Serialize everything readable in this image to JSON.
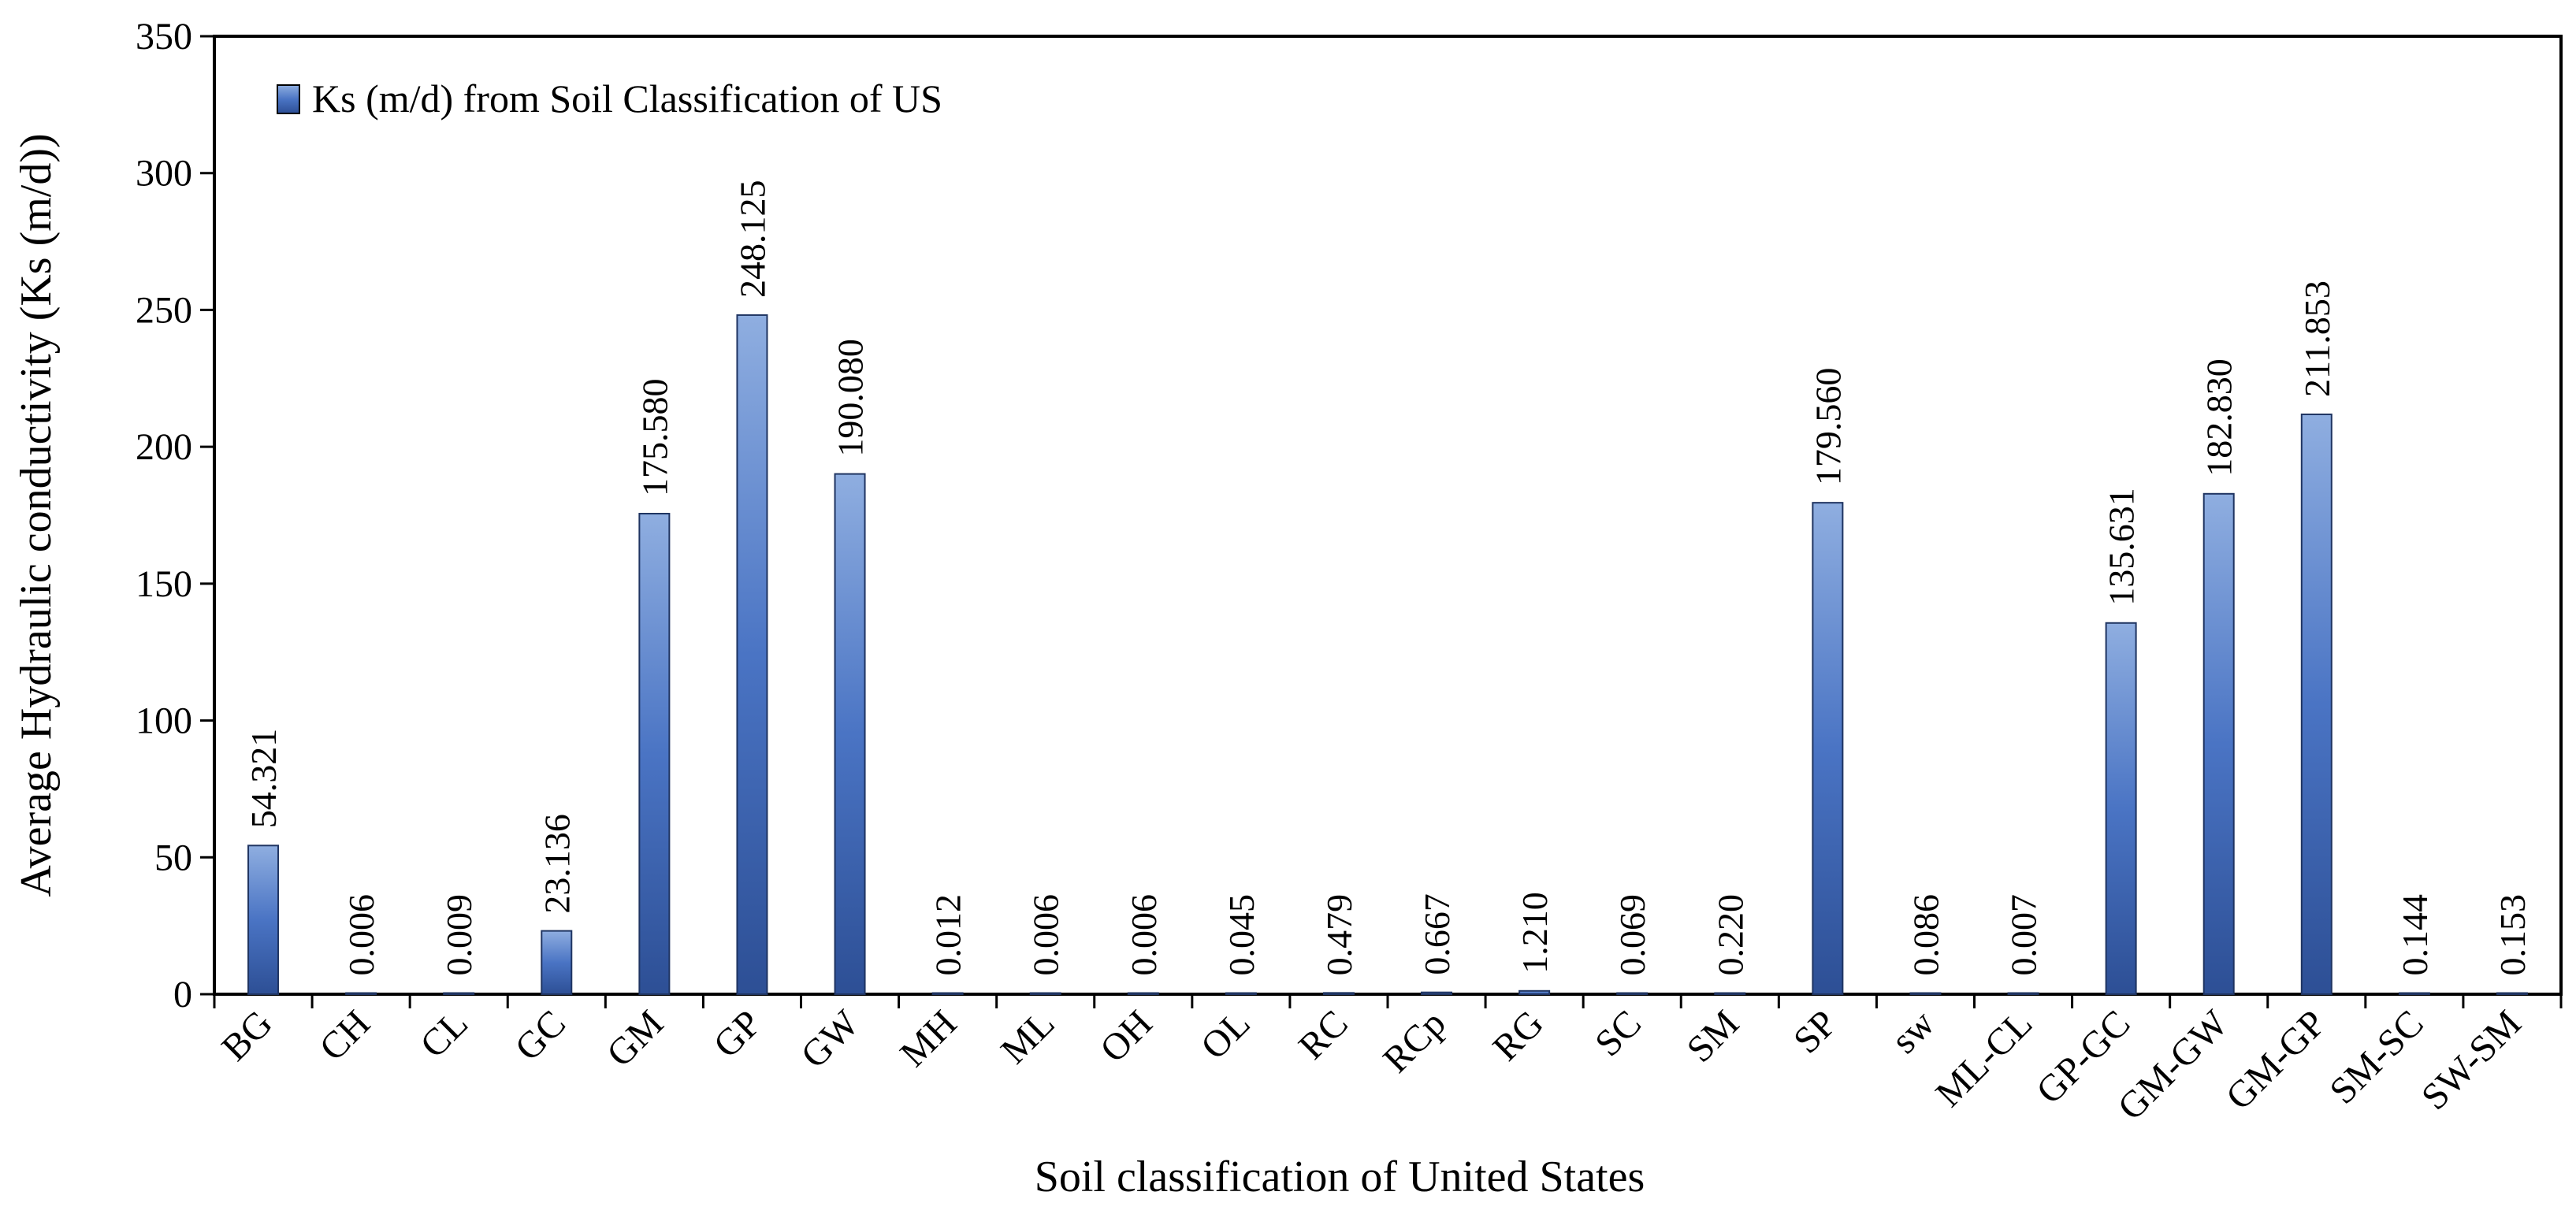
{
  "chart_data": {
    "type": "bar",
    "title": "",
    "xlabel": "Soil classification of United States",
    "ylabel": "Average Hydraulic conductivity (Ks (m/d))",
    "ylim": [
      0,
      350
    ],
    "yticks": [
      0,
      50,
      100,
      150,
      200,
      250,
      300,
      350
    ],
    "grid": false,
    "legend_position": "top-left",
    "categories": [
      "BG",
      "CH",
      "CL",
      "GC",
      "GM",
      "GP",
      "GW",
      "MH",
      "ML",
      "OH",
      "OL",
      "RC",
      "RCp",
      "RG",
      "SC",
      "SM",
      "SP",
      "sw",
      "ML-CL",
      "GP-GC",
      "GM-GW",
      "GM-GP",
      "SM-SC",
      "SW-SM"
    ],
    "series": [
      {
        "name": "Ks (m/d) from Soil Classification of US",
        "color": "#3b64b4",
        "values": [
          54.321,
          0.006,
          0.009,
          23.136,
          175.58,
          248.125,
          190.08,
          0.012,
          0.006,
          0.006,
          0.045,
          0.479,
          0.667,
          1.21,
          0.069,
          0.22,
          179.56,
          0.086,
          0.007,
          135.631,
          182.83,
          211.853,
          0.144,
          0.153
        ],
        "data_labels": [
          "54.321",
          "0.006",
          "0.009",
          "23.136",
          "175.580",
          "248.125",
          "190.080",
          "0.012",
          "0.006",
          "0.006",
          "0.045",
          "0.479",
          "0.667",
          "1.210",
          "0.069",
          "0.220",
          "179.560",
          "0.086",
          "0.007",
          "135.631",
          "182.830",
          "211.853",
          "0.144",
          "0.153"
        ]
      }
    ]
  }
}
